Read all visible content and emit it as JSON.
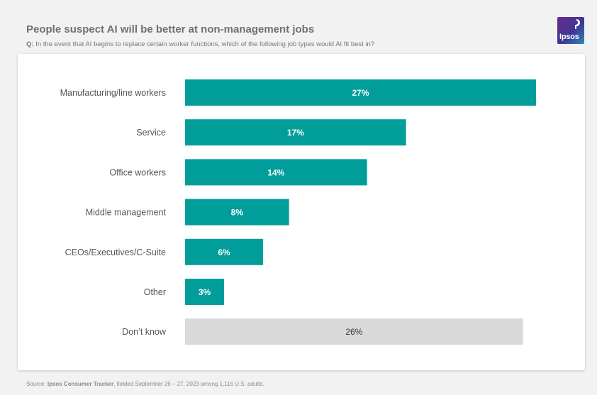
{
  "header": {
    "title": "People suspect AI will be better at non-management jobs",
    "question_prefix": "Q:",
    "question_text": "In the event that AI begins to replace certain worker functions, which of the following job types would AI fit best in?"
  },
  "logo": {
    "text": "Ipsos",
    "icon": "ipsos-logo-icon"
  },
  "colors": {
    "primary_bar": "#009d9a",
    "neutral_bar": "#d9d9d9",
    "primary_label": "#ffffff",
    "neutral_label": "#333333"
  },
  "chart_data": {
    "type": "bar",
    "orientation": "horizontal",
    "title": "People suspect AI will be better at non-management jobs",
    "categories": [
      "Manufacturing/line workers",
      "Service",
      "Office workers",
      "Middle management",
      "CEOs/Executives/C-Suite",
      "Other",
      "Don’t know"
    ],
    "values": [
      27,
      17,
      14,
      8,
      6,
      3,
      26
    ],
    "data_labels": [
      "27%",
      "17%",
      "14%",
      "8%",
      "6%",
      "3%",
      "26%"
    ],
    "highlight": [
      true,
      true,
      true,
      true,
      true,
      true,
      false
    ],
    "xlim": [
      0,
      27
    ],
    "xlabel": "",
    "ylabel": "",
    "grid": false,
    "legend": "none"
  },
  "footer": {
    "source_prefix": "Source:",
    "source_name": "Ipsos Consumer Tracker",
    "source_rest": ", fielded September 26 – 27, 2023 among 1,116 U.S. adults."
  }
}
